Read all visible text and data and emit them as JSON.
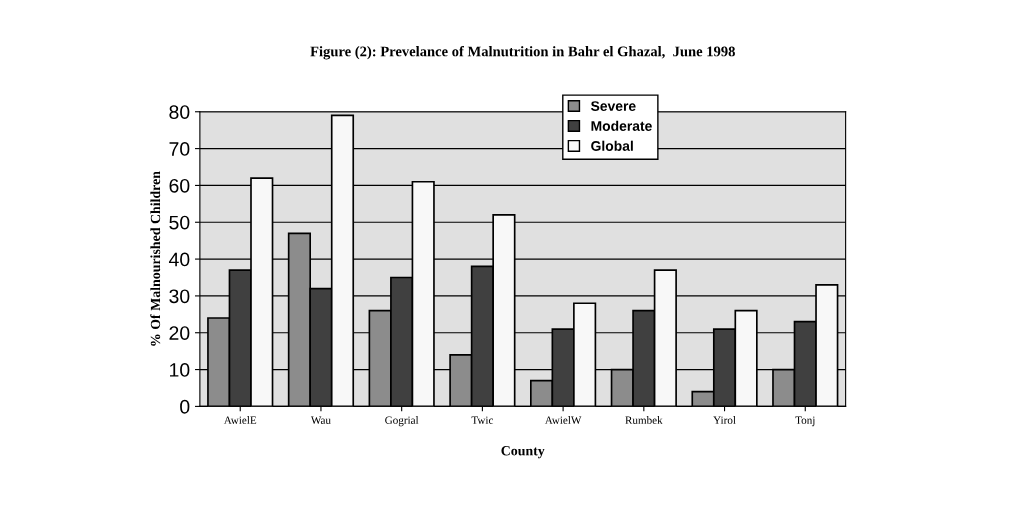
{
  "chart_data": {
    "type": "bar",
    "title": "Figure (2): Prevelance of Malnutrition in Bahr el Ghazal,  June 1998",
    "xlabel": "County",
    "ylabel": "% Of Malnourished Children",
    "categories": [
      "AwielE",
      "Wau",
      "Gogrial",
      "Twic",
      "AwielW",
      "Rumbek",
      "Yirol",
      "Tonj"
    ],
    "series": [
      {
        "name": "Severe",
        "color": "#8c8c8c",
        "values": [
          24,
          47,
          26,
          14,
          7,
          10,
          4,
          10
        ]
      },
      {
        "name": "Moderate",
        "color": "#404040",
        "values": [
          37,
          32,
          35,
          38,
          21,
          26,
          21,
          23
        ]
      },
      {
        "name": "Global",
        "color": "#f8f8f8",
        "values": [
          62,
          79,
          61,
          52,
          28,
          37,
          26,
          33
        ]
      }
    ],
    "ylim": [
      0,
      80
    ],
    "yticks": [
      0,
      10,
      20,
      30,
      40,
      50,
      60,
      70,
      80
    ],
    "grid": "y",
    "legend": "top right"
  }
}
